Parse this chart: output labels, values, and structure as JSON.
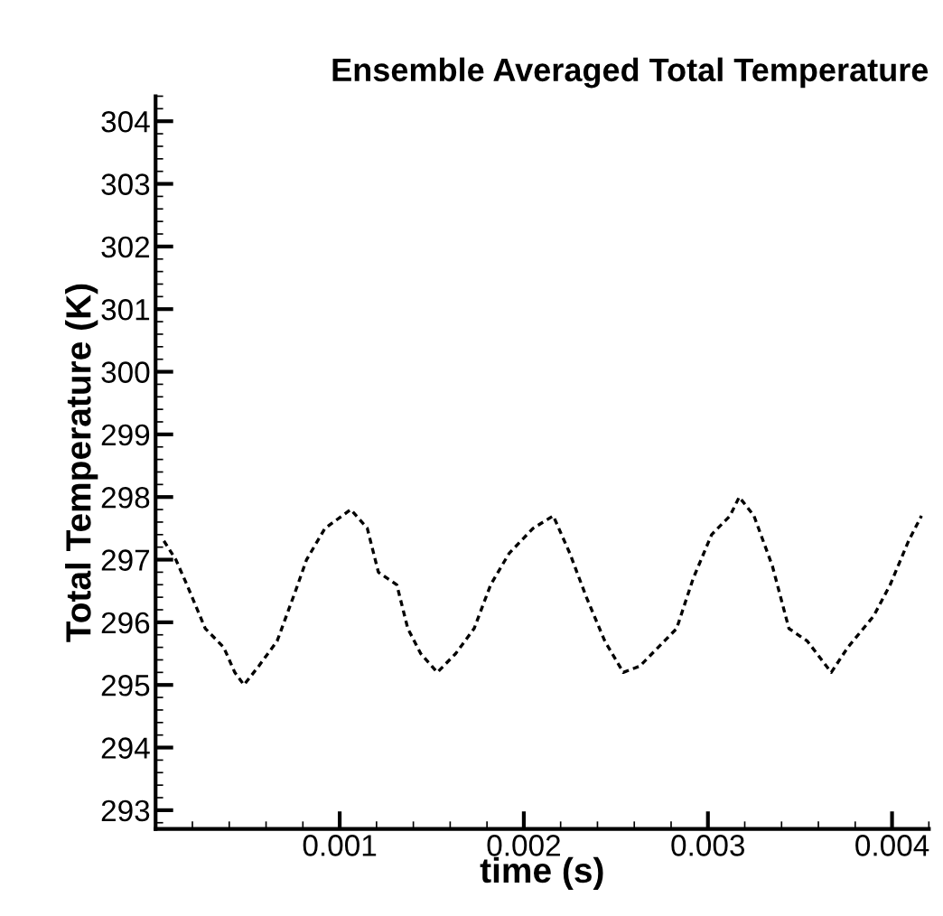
{
  "chart_data": {
    "type": "line",
    "title": "Ensemble Averaged Total Temperature",
    "xlabel": "time (s)",
    "ylabel": "Total Temperature (K)",
    "xlim": [
      0,
      0.0042
    ],
    "ylim": [
      292.7,
      304.4
    ],
    "xticks": [
      0.001,
      0.002,
      0.003,
      0.004
    ],
    "yticks": [
      293,
      294,
      295,
      296,
      297,
      298,
      299,
      300,
      301,
      302,
      303,
      304
    ],
    "grid": false,
    "line_style": "dashed",
    "marker": "none",
    "series": [
      {
        "color": "#000000",
        "x": [
          4.5e-05,
          0.00011,
          0.00017,
          0.00027,
          0.00037,
          0.00043,
          0.00048,
          0.00056,
          0.00066,
          0.00076,
          0.00082,
          0.00092,
          0.00106,
          0.00115,
          0.00121,
          0.00131,
          0.00137,
          0.00144,
          0.00153,
          0.00163,
          0.00173,
          0.00182,
          0.00192,
          0.00205,
          0.00216,
          0.00225,
          0.00234,
          0.00244,
          0.00254,
          0.00263,
          0.00273,
          0.00283,
          0.00292,
          0.00302,
          0.00312,
          0.00317,
          0.00325,
          0.00335,
          0.00344,
          0.00354,
          0.00367,
          0.00376,
          0.0039,
          0.00399,
          0.00409,
          0.00416
        ],
        "values": [
          297.3,
          297.0,
          296.6,
          295.9,
          295.6,
          295.2,
          295.0,
          295.3,
          295.7,
          296.5,
          297.0,
          297.5,
          297.8,
          297.5,
          296.8,
          296.6,
          295.9,
          295.5,
          295.2,
          295.5,
          295.9,
          296.6,
          297.1,
          297.5,
          297.7,
          297.1,
          296.4,
          295.7,
          295.2,
          295.3,
          295.6,
          295.9,
          296.7,
          297.4,
          297.7,
          298.0,
          297.7,
          296.9,
          295.9,
          295.7,
          295.2,
          295.6,
          296.1,
          296.6,
          297.3,
          297.7
        ]
      }
    ]
  }
}
